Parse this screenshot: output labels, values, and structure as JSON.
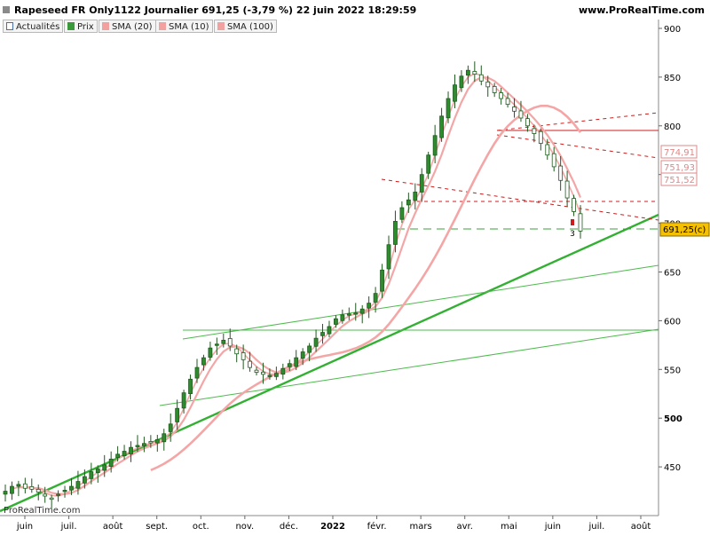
{
  "header": {
    "title": "Rapeseed FR Only1122 Journalier 691,25 (-3,79 %) 22 juin 2022 18:29:59",
    "site": "www.ProRealTime.com"
  },
  "toolbar": {
    "buttons": [
      {
        "label": "Actualités",
        "icon": "refresh-icon",
        "color": "#4a6fa5"
      },
      {
        "label": "Prix",
        "icon": "price-swatch",
        "color": "#3a9a3a"
      },
      {
        "label": "SMA (20)",
        "icon": "sma20-swatch",
        "color": "#f2a0a0"
      },
      {
        "label": "SMA (10)",
        "icon": "sma10-swatch",
        "color": "#f2a0a0"
      },
      {
        "label": "SMA (100)",
        "icon": "sma100-swatch",
        "color": "#f2a0a0"
      }
    ]
  },
  "watermark": "ProRealTime.com",
  "chart_data": {
    "type": "candlestick",
    "y_axis_ticks": [
      "450",
      "500",
      "550",
      "600",
      "650",
      "700",
      "750",
      "800",
      "850",
      "900"
    ],
    "ylim": [
      400,
      910
    ],
    "x_axis_labels": [
      "juin",
      "juil.",
      "août",
      "sept.",
      "oct.",
      "nov.",
      "déc.",
      "2022",
      "févr.",
      "mars",
      "avr.",
      "mai",
      "juin",
      "juil.",
      "août"
    ],
    "price_series": [
      425,
      430,
      432,
      428,
      427,
      424,
      420,
      418,
      422,
      426,
      430,
      435,
      440,
      445,
      448,
      452,
      458,
      463,
      466,
      470,
      472,
      474,
      476,
      478,
      484,
      494,
      510,
      526,
      540,
      552,
      562,
      572,
      576,
      580,
      574,
      566,
      560,
      552,
      547,
      545,
      544,
      546,
      551,
      556,
      562,
      568,
      574,
      582,
      588,
      594,
      602,
      606,
      607,
      608,
      612,
      618,
      628,
      652,
      678,
      702,
      716,
      724,
      732,
      750,
      770,
      790,
      810,
      828,
      842,
      851,
      857,
      853,
      846,
      840,
      834,
      828,
      822,
      815,
      808,
      800,
      792,
      782,
      770,
      758,
      744,
      726,
      712,
      692
    ],
    "sma_labels": [
      "774,91",
      "751,93",
      "751,52"
    ],
    "last_price_label": "691,25(c)",
    "marker_label": "3",
    "colors": {
      "candle": "#2b7a2b",
      "sma": "#f4a6a6",
      "trend_thick": "#3cb33c",
      "trend_thin": "#45b545",
      "resistance": "#d01c1c",
      "last_price_box": "#f5c000"
    }
  }
}
